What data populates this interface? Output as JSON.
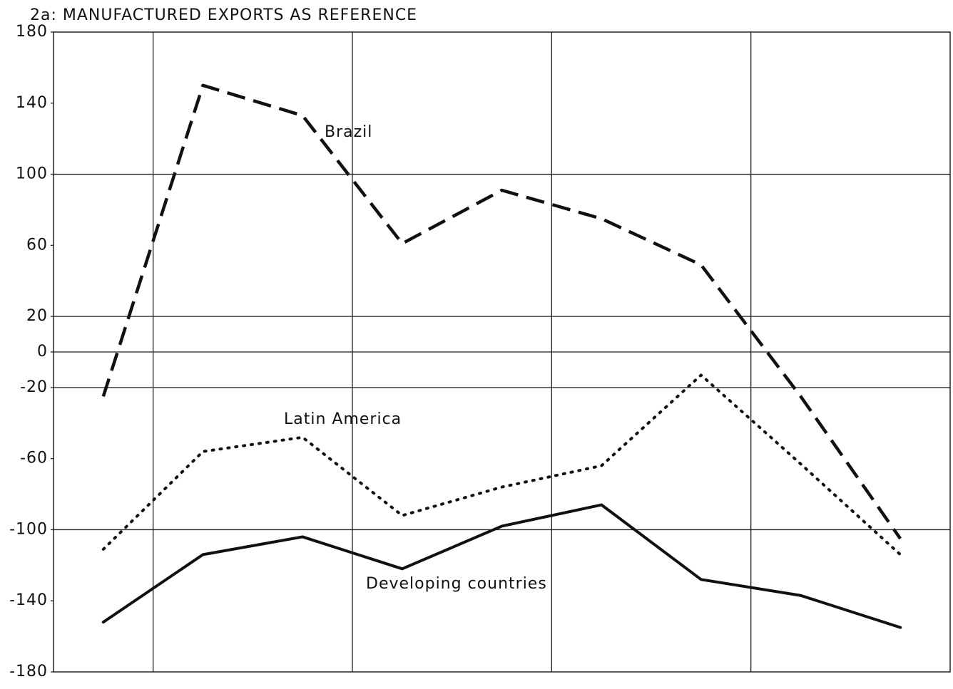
{
  "chart_data": {
    "type": "line",
    "title": "2a: MANUFACTURED EXPORTS AS REFERENCE",
    "categories": [
      null,
      null,
      null,
      null,
      null,
      null,
      null,
      null,
      null
    ],
    "series": [
      {
        "name": "Brazil",
        "color": "#111111",
        "style": "dashed",
        "values": [
          -25,
          150,
          133,
          61,
          91,
          75,
          49,
          -25,
          -105
        ]
      },
      {
        "name": "Latin America",
        "color": "#111111",
        "style": "dotted",
        "values": [
          -111,
          -56,
          -48,
          -92,
          -76,
          -64,
          -13,
          -63,
          -114
        ]
      },
      {
        "name": "Developing countries",
        "color": "#111111",
        "style": "solid",
        "values": [
          -152,
          -114,
          -104,
          -122,
          -98,
          -86,
          -128,
          -137,
          -155
        ]
      }
    ],
    "ylim": [
      -180,
      180
    ],
    "yticks": [
      180,
      140,
      100,
      60,
      20,
      0,
      -20,
      -60,
      -100,
      -140,
      -180
    ],
    "ygrid": [
      100,
      20,
      0,
      -20,
      -100
    ]
  }
}
